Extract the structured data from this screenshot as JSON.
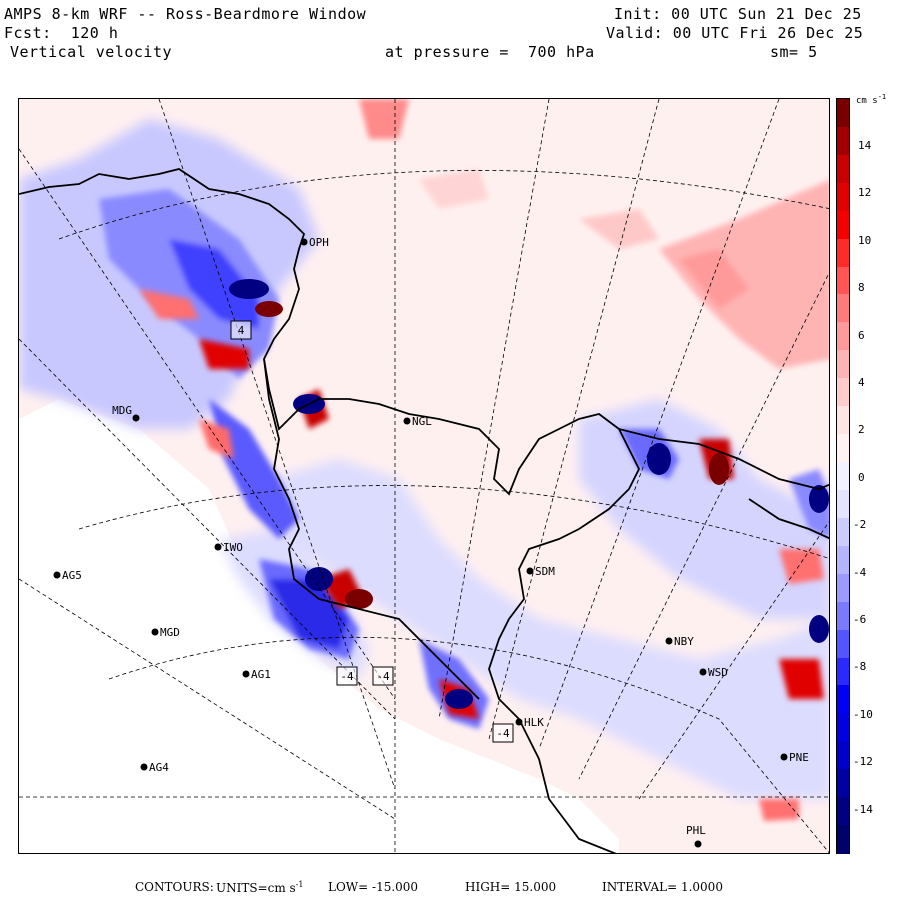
{
  "header": {
    "title": "AMPS 8-km WRF -- Ross-Beardmore Window",
    "forecast": "Fcst:  120 h",
    "variable": "Vertical velocity",
    "pressure_level": "at pressure =  700 hPa",
    "init": "Init: 00 UTC Sun 21 Dec 25",
    "valid": "Valid: 00 UTC Fri 26 Dec 25",
    "smoothing": "sm= 5"
  },
  "colorbar": {
    "units_label": "cm s",
    "units_exp": "-1",
    "ticks": [
      "14",
      "12",
      "10",
      "8",
      "6",
      "4",
      "2",
      "0",
      "-2",
      "-4",
      "-6",
      "-8",
      "-10",
      "-12",
      "-14"
    ],
    "colors_top_to_bottom": [
      "#7a0000",
      "#a00000",
      "#c80000",
      "#e00000",
      "#f40000",
      "#ff2a2a",
      "#ff5555",
      "#ff7a7a",
      "#ff9a9a",
      "#ffb4b4",
      "#ffcccc",
      "#ffe4e4",
      "#fff2f2",
      "#f2f2ff",
      "#e4e4ff",
      "#ccccff",
      "#b4b4ff",
      "#9a9aff",
      "#7a7aff",
      "#5555ff",
      "#2a2aff",
      "#0000f4",
      "#0000e0",
      "#0000c8",
      "#0000a0",
      "#000080",
      "#00006a"
    ]
  },
  "stations": [
    {
      "code": "OPH"
    },
    {
      "code": "MDG"
    },
    {
      "code": "NGL"
    },
    {
      "code": "IWO"
    },
    {
      "code": "AG5"
    },
    {
      "code": "SDM"
    },
    {
      "code": "MGD"
    },
    {
      "code": "NBY"
    },
    {
      "code": "AG1"
    },
    {
      "code": "WSD"
    },
    {
      "code": "HLK"
    },
    {
      "code": "AG4"
    },
    {
      "code": "PNE"
    },
    {
      "code": "PHL"
    }
  ],
  "map_labels": {
    "extremes": [
      "4",
      "-4",
      "-4",
      "-4"
    ]
  },
  "footer": {
    "contours_label": "CONTOURS:",
    "units_label": "UNITS=cm s",
    "units_exp": "-1",
    "low": "LOW= -15.000",
    "high": "HIGH= 15.000",
    "interval": "INTERVAL= 1.0000"
  }
}
